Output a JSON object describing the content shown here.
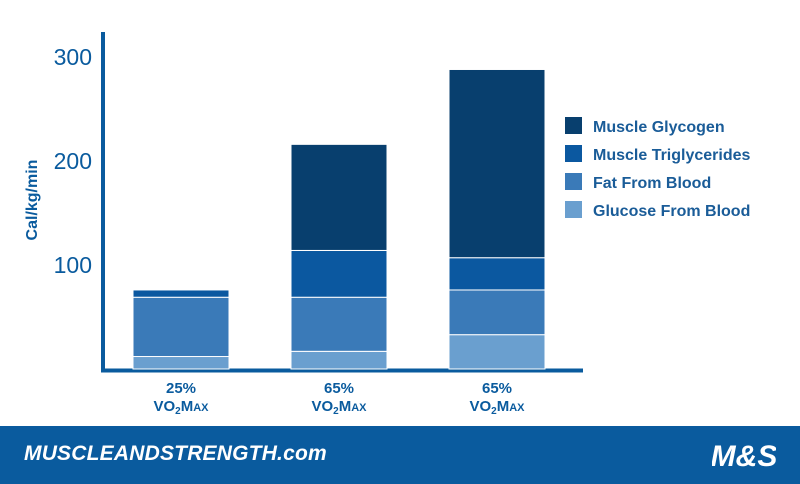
{
  "chart_data": {
    "type": "bar",
    "stacked": true,
    "ylabel": "Cal/kg/min",
    "yticks": [
      100,
      200,
      300
    ],
    "ylim": [
      0,
      310
    ],
    "categories": [
      {
        "pct": "25%",
        "vo2": "VO",
        "sub": "2",
        "max": "MAX"
      },
      {
        "pct": "65%",
        "vo2": "VO",
        "sub": "2",
        "max": "MAX"
      },
      {
        "pct": "65%",
        "vo2": "VO",
        "sub": "2",
        "max": "MAX"
      }
    ],
    "series": [
      {
        "name": "Glucose From Blood",
        "color": "#6a9fcf",
        "values": [
          12,
          17,
          33
        ]
      },
      {
        "name": "Fat From Blood",
        "color": "#3a7ab8",
        "values": [
          57,
          52,
          43
        ]
      },
      {
        "name": "Muscle Triglycerides",
        "color": "#0b58a0",
        "values": [
          7,
          45,
          31
        ]
      },
      {
        "name": "Muscle Glycogen",
        "color": "#083f6e",
        "values": [
          0,
          102,
          181
        ]
      }
    ],
    "legend_order": [
      "Muscle Glycogen",
      "Muscle Triglycerides",
      "Fat From Blood",
      "Glucose From Blood"
    ],
    "legend_position": "right"
  },
  "colors": {
    "axis": "#0a5b9e",
    "text": "#0a5b9e",
    "footer": "#0a5b9e"
  },
  "footer": {
    "site": "MUSCLEANDSTRENGTH.com",
    "logo_text": "M&S"
  }
}
